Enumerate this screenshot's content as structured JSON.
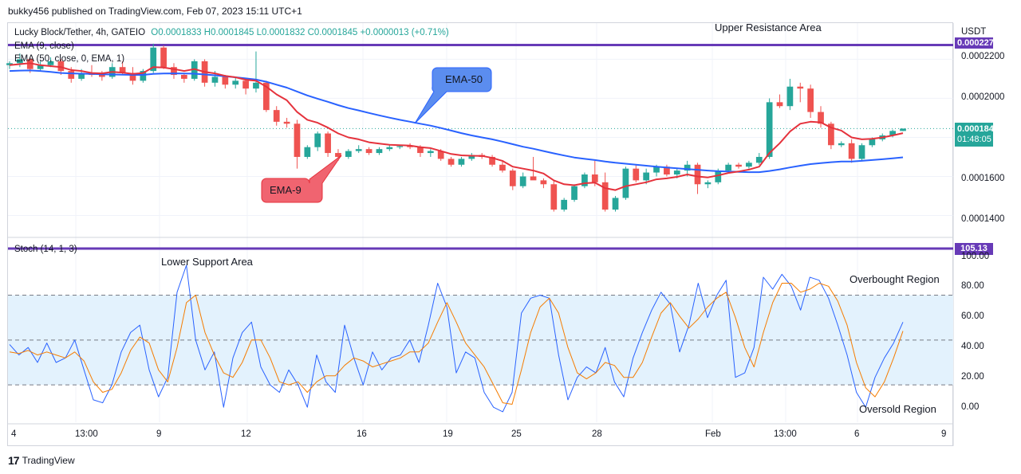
{
  "header": {
    "publisher": "bukky456 published on TradingView.com, Feb 07, 2023 15:11 UTC+1"
  },
  "legend": {
    "symbol": "Lucky Block/Tether, 4h, GATEIO",
    "ohlc": "O0.0001833 H0.0001845 L0.0001832 C0.0001845 +0.0000013 (+0.71%)",
    "ema9": "EMA (9, close)",
    "ema50": "EMA (50, close, 0, EMA, 1)",
    "stoch": "Stoch (14, 1, 3)"
  },
  "price_axis": {
    "currency": "USDT",
    "ticks": [
      "0.0002200",
      "0.0002000",
      "0.0001600",
      "0.0001400"
    ],
    "top_tag": "0.0002273",
    "last_price": "0.0001845",
    "countdown": "01:48:05"
  },
  "stoch_axis": {
    "ticks": [
      "100.00",
      "80.00",
      "60.00",
      "40.00",
      "20.00",
      "0.00"
    ],
    "tag": "105.13"
  },
  "time_axis": [
    "4",
    "13:00",
    "9",
    "12",
    "16",
    "19",
    "25",
    "28",
    "Feb",
    "13:00",
    "6",
    "9"
  ],
  "annotations": {
    "upper": "Upper Resistance Area",
    "lower": "Lower Support Area",
    "overbought": "Overbought Region",
    "oversold": "Oversold Region",
    "ema50_callout": "EMA-50",
    "ema9_callout": "EMA-9"
  },
  "footer": {
    "brand": "TradingView"
  },
  "colors": {
    "up": "#26a69a",
    "down": "#ef5350",
    "ema9": "#e5323c",
    "ema50": "#2962ff",
    "resistance_line": "#673ab7",
    "stoch_k": "#2962ff",
    "stoch_d": "#f57c00",
    "band": "#e3f2fd"
  },
  "chart_data": {
    "type": "candlestick",
    "ylim": [
      0.00013,
      0.000232
    ],
    "resistance_level": 0.0002273,
    "candles": [
      [
        0.000217,
        0.000219,
        0.000215,
        0.000218
      ],
      [
        0.000218,
        0.000223,
        0.000216,
        0.00022
      ],
      [
        0.00022,
        0.000221,
        0.000213,
        0.000215
      ],
      [
        0.000215,
        0.000219,
        0.000214,
        0.000217
      ],
      [
        0.000217,
        0.000221,
        0.000216,
        0.000219
      ],
      [
        0.000219,
        0.00022,
        0.000212,
        0.000214
      ],
      [
        0.000214,
        0.000216,
        0.000208,
        0.00021
      ],
      [
        0.00021,
        0.000215,
        0.000209,
        0.000213
      ],
      [
        0.000213,
        0.000217,
        0.000211,
        0.000212
      ],
      [
        0.000212,
        0.000214,
        0.000209,
        0.000211
      ],
      [
        0.000211,
        0.000218,
        0.00021,
        0.000216
      ],
      [
        0.000216,
        0.000219,
        0.000212,
        0.000213
      ],
      [
        0.000213,
        0.000216,
        0.000207,
        0.000209
      ],
      [
        0.000209,
        0.000215,
        0.000208,
        0.000214
      ],
      [
        0.000214,
        0.000228,
        0.000213,
        0.000226
      ],
      [
        0.000226,
        0.000227,
        0.000215,
        0.000216
      ],
      [
        0.000216,
        0.000218,
        0.00021,
        0.000212
      ],
      [
        0.000212,
        0.000213,
        0.000208,
        0.00021
      ],
      [
        0.00021,
        0.00022,
        0.000209,
        0.000219
      ],
      [
        0.000219,
        0.00022,
        0.000206,
        0.000208
      ],
      [
        0.000208,
        0.000214,
        0.000206,
        0.000211
      ],
      [
        0.000211,
        0.000212,
        0.000205,
        0.000207
      ],
      [
        0.000207,
        0.000211,
        0.000205,
        0.000209
      ],
      [
        0.000209,
        0.00021,
        0.000202,
        0.000205
      ],
      [
        0.000205,
        0.000224,
        0.000203,
        0.000208
      ],
      [
        0.000208,
        0.000209,
        0.000193,
        0.000194
      ],
      [
        0.000194,
        0.000196,
        0.000186,
        0.000188
      ],
      [
        0.000188,
        0.00019,
        0.000185,
        0.000187
      ],
      [
        0.000187,
        0.000189,
        0.000164,
        0.00017
      ],
      [
        0.00017,
        0.000176,
        0.000169,
        0.000175
      ],
      [
        0.000175,
        0.000183,
        0.000173,
        0.000182
      ],
      [
        0.000182,
        0.000183,
        0.00017,
        0.000172
      ],
      [
        0.000172,
        0.000174,
        0.000168,
        0.00017
      ],
      [
        0.00017,
        0.000174,
        0.000169,
        0.000173
      ],
      [
        0.000173,
        0.000176,
        0.000172,
        0.000174
      ],
      [
        0.000174,
        0.000175,
        0.000171,
        0.000172
      ],
      [
        0.000172,
        0.000175,
        0.000171,
        0.000174
      ],
      [
        0.000174,
        0.000176,
        0.000173,
        0.000175
      ],
      [
        0.000175,
        0.000176,
        0.000174,
        0.0001755
      ],
      [
        0.0001755,
        0.000177,
        0.000174,
        0.000175
      ],
      [
        0.000175,
        0.000176,
        0.00017,
        0.000172
      ],
      [
        0.000172,
        0.000174,
        0.00017,
        0.000173
      ],
      [
        0.000173,
        0.000174,
        0.000168,
        0.000169
      ],
      [
        0.000169,
        0.00017,
        0.000165,
        0.000166
      ],
      [
        0.000166,
        0.00017,
        0.000165,
        0.000169
      ],
      [
        0.000169,
        0.000172,
        0.000168,
        0.000171
      ],
      [
        0.000171,
        0.000172,
        0.000169,
        0.00017
      ],
      [
        0.00017,
        0.000171,
        0.000165,
        0.000166
      ],
      [
        0.000166,
        0.000168,
        0.000162,
        0.000163
      ],
      [
        0.000163,
        0.000164,
        0.000153,
        0.000155
      ],
      [
        0.000155,
        0.000162,
        0.000154,
        0.00016
      ],
      [
        0.00016,
        0.00017,
        0.000159,
        0.000158
      ],
      [
        0.000158,
        0.000159,
        0.000154,
        0.000156
      ],
      [
        0.000156,
        0.000158,
        0.000142,
        0.000143
      ],
      [
        0.000143,
        0.000149,
        0.000142,
        0.000148
      ],
      [
        0.000148,
        0.000156,
        0.000147,
        0.000155
      ],
      [
        0.000155,
        0.000162,
        0.000154,
        0.000161
      ],
      [
        0.000161,
        0.000168,
        0.000155,
        0.000157
      ],
      [
        0.000157,
        0.000162,
        0.000142,
        0.000143
      ],
      [
        0.000143,
        0.00015,
        0.000142,
        0.000149
      ],
      [
        0.000149,
        0.000165,
        0.000148,
        0.000164
      ],
      [
        0.000164,
        0.000166,
        0.000157,
        0.000158
      ],
      [
        0.000158,
        0.000164,
        0.000156,
        0.000162
      ],
      [
        0.000162,
        0.000166,
        0.00016,
        0.000165
      ],
      [
        0.000165,
        0.000166,
        0.00016,
        0.000161
      ],
      [
        0.000161,
        0.000164,
        0.000159,
        0.000163
      ],
      [
        0.000163,
        0.000168,
        0.00016,
        0.000166
      ],
      [
        0.000166,
        0.000167,
        0.000151,
        0.000156
      ],
      [
        0.000156,
        0.000158,
        0.000154,
        0.000157
      ],
      [
        0.000157,
        0.000164,
        0.000156,
        0.000163
      ],
      [
        0.000163,
        0.000167,
        0.000162,
        0.000166
      ],
      [
        0.000166,
        0.000167,
        0.000164,
        0.000165
      ],
      [
        0.000165,
        0.000168,
        0.000164,
        0.000167
      ],
      [
        0.000167,
        0.000172,
        0.000166,
        0.00017
      ],
      [
        0.00017,
        0.0002,
        0.000169,
        0.000198
      ],
      [
        0.000198,
        0.000202,
        0.000195,
        0.000196
      ],
      [
        0.000196,
        0.00021,
        0.000194,
        0.000206
      ],
      [
        0.000206,
        0.000208,
        0.000198,
        0.000205
      ],
      [
        0.000205,
        0.000207,
        0.00019,
        0.000193
      ],
      [
        0.000193,
        0.000196,
        0.000185,
        0.000187
      ],
      [
        0.000187,
        0.000188,
        0.000174,
        0.000176
      ],
      [
        0.000176,
        0.000178,
        0.000175,
        0.000177
      ],
      [
        0.000177,
        0.000179,
        0.000167,
        0.000169
      ],
      [
        0.000169,
        0.000177,
        0.000168,
        0.000176
      ],
      [
        0.000176,
        0.00018,
        0.000175,
        0.000179
      ],
      [
        0.000179,
        0.000182,
        0.000178,
        0.000181
      ],
      [
        0.000181,
        0.000184,
        0.00018,
        0.0001833
      ],
      [
        0.0001833,
        0.0001845,
        0.0001832,
        0.0001845
      ]
    ],
    "ema9": [
      0.000217,
      0.0002175,
      0.000218,
      0.000217,
      0.0002165,
      0.000216,
      0.0002145,
      0.000214,
      0.000213,
      0.0002128,
      0.0002135,
      0.0002132,
      0.0002125,
      0.000213,
      0.000216,
      0.0002158,
      0.000215,
      0.000214,
      0.000215,
      0.0002135,
      0.0002128,
      0.0002115,
      0.0002108,
      0.0002095,
      0.000209,
      0.000206,
      0.000202,
      0.000199,
      0.000193,
      0.000189,
      0.0001875,
      0.000185,
      0.000182,
      0.00018,
      0.000179,
      0.0001775,
      0.0001768,
      0.0001762,
      0.000176,
      0.0001758,
      0.000175,
      0.0001745,
      0.000173,
      0.0001715,
      0.0001708,
      0.0001706,
      0.0001705,
      0.0001695,
      0.000168,
      0.000165,
      0.000164,
      0.000163,
      0.0001615,
      0.000158,
      0.000156,
      0.0001555,
      0.0001565,
      0.0001568,
      0.000154,
      0.000153,
      0.000155,
      0.000156,
      0.000157,
      0.0001585,
      0.000159,
      0.0001598,
      0.000161,
      0.00016,
      0.0001595,
      0.0001605,
      0.0001618,
      0.0001625,
      0.0001635,
      0.000165,
      0.000172,
      0.000177,
      0.000183,
      0.000187,
      0.000188,
      0.0001877,
      0.000185,
      0.0001835,
      0.00018,
      0.000179,
      0.0001793,
      0.00018,
      0.000181,
      0.0001822
    ],
    "ema50": [
      0.000214,
      0.0002142,
      0.0002143,
      0.000214,
      0.0002135,
      0.000213,
      0.0002128,
      0.0002126,
      0.0002125,
      0.0002123,
      0.0002122,
      0.0002121,
      0.000212,
      0.000212,
      0.0002125,
      0.0002127,
      0.0002128,
      0.0002127,
      0.0002126,
      0.0002122,
      0.0002118,
      0.0002113,
      0.0002108,
      0.0002102,
      0.0002096,
      0.0002085,
      0.000207,
      0.0002055,
      0.0002035,
      0.0002015,
      0.0001998,
      0.0001982,
      0.0001965,
      0.000195,
      0.0001938,
      0.0001925,
      0.0001913,
      0.0001901,
      0.000189,
      0.000188,
      0.000187,
      0.000186,
      0.0001848,
      0.0001835,
      0.0001822,
      0.000181,
      0.00018,
      0.000179,
      0.0001778,
      0.0001765,
      0.0001752,
      0.0001742,
      0.000173,
      0.0001718,
      0.0001707,
      0.0001697,
      0.000169,
      0.0001684,
      0.0001676,
      0.000167,
      0.0001665,
      0.000166,
      0.0001655,
      0.000165,
      0.0001646,
      0.0001642,
      0.0001638,
      0.0001634,
      0.000163,
      0.0001627,
      0.0001625,
      0.0001623,
      0.0001622,
      0.0001622,
      0.0001628,
      0.0001636,
      0.0001646,
      0.0001655,
      0.0001663,
      0.0001668,
      0.0001673,
      0.0001676,
      0.0001676,
      0.000168,
      0.0001684,
      0.0001688,
      0.0001693,
      0.0001698
    ],
    "stoch": {
      "ylim": [
        -5,
        108
      ],
      "overbought": 80,
      "oversold": 20,
      "k": [
        47,
        40,
        45,
        35,
        48,
        35,
        38,
        50,
        30,
        10,
        8,
        20,
        42,
        55,
        60,
        30,
        12,
        25,
        82,
        100,
        50,
        30,
        42,
        5,
        38,
        55,
        62,
        32,
        20,
        15,
        30,
        20,
        5,
        40,
        22,
        15,
        60,
        38,
        20,
        42,
        30,
        38,
        40,
        50,
        35,
        60,
        88,
        72,
        28,
        42,
        38,
        15,
        5,
        2,
        15,
        68,
        78,
        80,
        78,
        40,
        10,
        25,
        32,
        28,
        45,
        22,
        12,
        38,
        55,
        70,
        82,
        74,
        42,
        60,
        88,
        65,
        80,
        90,
        25,
        28,
        45,
        92,
        84,
        94,
        86,
        70,
        92,
        90,
        78,
        60,
        40,
        15,
        5,
        25,
        38,
        48,
        62
      ],
      "d": [
        42,
        41,
        43,
        40,
        42,
        40,
        38,
        42,
        36,
        22,
        15,
        17,
        28,
        43,
        52,
        48,
        30,
        22,
        45,
        75,
        80,
        55,
        40,
        28,
        25,
        35,
        50,
        50,
        38,
        22,
        20,
        22,
        15,
        22,
        26,
        26,
        33,
        38,
        36,
        32,
        34,
        36,
        38,
        42,
        42,
        48,
        62,
        75,
        62,
        48,
        40,
        32,
        20,
        8,
        7,
        30,
        55,
        72,
        78,
        68,
        45,
        28,
        24,
        28,
        35,
        33,
        25,
        25,
        35,
        52,
        68,
        75,
        66,
        58,
        64,
        72,
        78,
        82,
        65,
        45,
        32,
        55,
        75,
        88,
        88,
        82,
        84,
        88,
        86,
        76,
        60,
        35,
        18,
        12,
        22,
        38,
        56
      ]
    }
  }
}
